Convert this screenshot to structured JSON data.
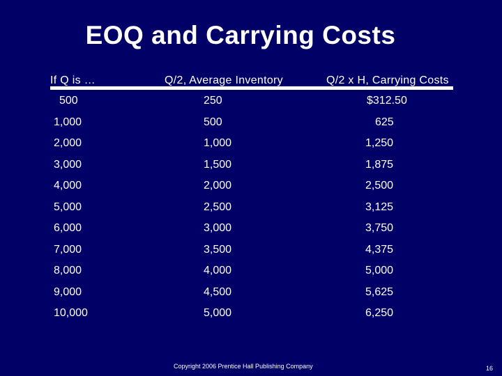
{
  "title": "EOQ and Carrying Costs",
  "columns": [
    "If Q is …",
    "Q/2, Average Inventory",
    "Q/2 x H, Carrying Costs"
  ],
  "rows": [
    [
      "500",
      "250",
      "$312.50"
    ],
    [
      "1,000",
      "500",
      "625"
    ],
    [
      "2,000",
      "1,000",
      "1,250"
    ],
    [
      "3,000",
      "1,500",
      "1,875"
    ],
    [
      "4,000",
      "2,000",
      "2,500"
    ],
    [
      "5,000",
      "2,500",
      "3,125"
    ],
    [
      "6,000",
      "3,000",
      "3,750"
    ],
    [
      "7,000",
      "3,500",
      "4,375"
    ],
    [
      "8,000",
      "4,000",
      "5,000"
    ],
    [
      "9,000",
      "4,500",
      "5,625"
    ],
    [
      "10,000",
      "5,000",
      "6,250"
    ]
  ],
  "footer": "Copyright 2006 Prentice Hall Publishing Company",
  "page_number": "16",
  "colors": {
    "background": "#000066",
    "text": "#ffffff"
  }
}
